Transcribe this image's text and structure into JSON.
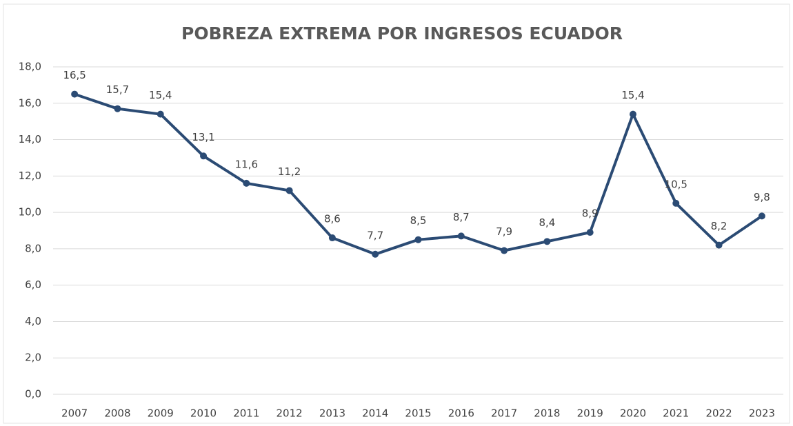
{
  "chart_data": {
    "type": "line",
    "title": "POBREZA EXTREMA POR INGRESOS ECUADOR",
    "categories": [
      "2007",
      "2008",
      "2009",
      "2010",
      "2011",
      "2012",
      "2013",
      "2014",
      "2015",
      "2016",
      "2017",
      "2018",
      "2019",
      "2020",
      "2021",
      "2022",
      "2023"
    ],
    "series": [
      {
        "color": "#2b4b74",
        "values": [
          16.5,
          15.7,
          15.4,
          13.1,
          11.6,
          11.2,
          8.6,
          7.7,
          8.5,
          8.7,
          7.9,
          8.4,
          8.9,
          15.4,
          10.5,
          8.2,
          9.8
        ],
        "value_labels": [
          "16,5",
          "15,7",
          "15,4",
          "13,1",
          "11,6",
          "11,2",
          "8,6",
          "7,7",
          "8,5",
          "8,7",
          "7,9",
          "8,4",
          "8,9",
          "15,4",
          "10,5",
          "8,2",
          "9,8"
        ]
      }
    ],
    "ylim": [
      0,
      18
    ],
    "yticks": [
      {
        "value": 0,
        "label": "0,0"
      },
      {
        "value": 2,
        "label": "2,0"
      },
      {
        "value": 4,
        "label": "4,0"
      },
      {
        "value": 6,
        "label": "6,0"
      },
      {
        "value": 8,
        "label": "8,0"
      },
      {
        "value": 10,
        "label": "10,0"
      },
      {
        "value": 12,
        "label": "12,0"
      },
      {
        "value": 14,
        "label": "14,0"
      },
      {
        "value": 16,
        "label": "16,0"
      },
      {
        "value": 18,
        "label": "18,0"
      }
    ],
    "grid": true
  }
}
